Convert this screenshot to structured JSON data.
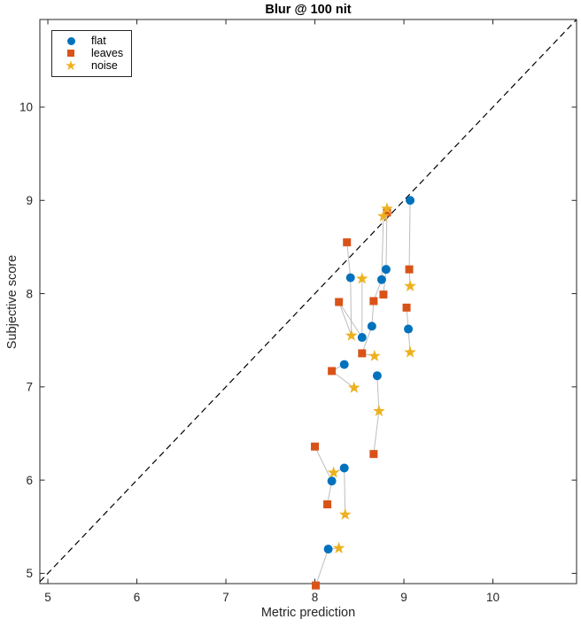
{
  "chart_data": {
    "type": "scatter",
    "title": "Blur @ 100 nit",
    "xlabel": "Metric prediction",
    "ylabel": "Subjective score",
    "xlim": [
      4.91,
      10.94
    ],
    "ylim": [
      4.89,
      10.94
    ],
    "x_ticks": [
      "5",
      "6",
      "7",
      "8",
      "9",
      "10"
    ],
    "x_tick_values": [
      5,
      6,
      7,
      8,
      9,
      10
    ],
    "y_ticks": [
      "5",
      "6",
      "7",
      "8",
      "9",
      "10"
    ],
    "y_tick_values": [
      5,
      6,
      7,
      8,
      9,
      10
    ],
    "grid": false,
    "legend_position": "top-left",
    "frame_color": "#262626",
    "identity_line": {
      "color": "#000000",
      "style": "dashed"
    },
    "connector_color": "#bebebe",
    "series": [
      {
        "name": "flat",
        "marker": "circle",
        "color": "#0072BD",
        "points": [
          [
            9.07,
            9.0
          ],
          [
            8.8,
            8.26
          ],
          [
            8.75,
            8.15
          ],
          [
            8.4,
            8.17
          ],
          [
            8.64,
            7.65
          ],
          [
            8.53,
            7.53
          ],
          [
            9.05,
            7.62
          ],
          [
            8.33,
            7.24
          ],
          [
            8.7,
            7.12
          ],
          [
            8.33,
            6.13
          ],
          [
            8.19,
            5.99
          ],
          [
            8.15,
            5.26
          ]
        ]
      },
      {
        "name": "leaves",
        "marker": "square",
        "color": "#D95319",
        "points": [
          [
            9.06,
            8.26
          ],
          [
            8.81,
            8.87
          ],
          [
            8.77,
            7.99
          ],
          [
            8.66,
            7.92
          ],
          [
            8.36,
            8.55
          ],
          [
            8.27,
            7.91
          ],
          [
            9.03,
            7.85
          ],
          [
            8.53,
            7.36
          ],
          [
            8.19,
            7.17
          ],
          [
            8.0,
            6.36
          ],
          [
            8.66,
            6.28
          ],
          [
            8.14,
            5.74
          ],
          [
            8.01,
            4.87
          ]
        ]
      },
      {
        "name": "noise",
        "marker": "star",
        "color": "#EDB120",
        "points": [
          [
            8.81,
            8.91
          ],
          [
            8.77,
            8.83
          ],
          [
            9.07,
            8.08
          ],
          [
            8.53,
            8.16
          ],
          [
            8.41,
            7.55
          ],
          [
            8.67,
            7.33
          ],
          [
            9.07,
            7.37
          ],
          [
            8.44,
            6.99
          ],
          [
            8.72,
            6.74
          ],
          [
            8.21,
            6.08
          ],
          [
            8.34,
            5.63
          ],
          [
            8.27,
            5.27
          ]
        ]
      }
    ],
    "connectors": [
      [
        [
          9.07,
          9.0
        ],
        [
          9.06,
          8.26
        ]
      ],
      [
        [
          9.06,
          8.26
        ],
        [
          9.07,
          8.08
        ]
      ],
      [
        [
          8.81,
          8.91
        ],
        [
          8.8,
          8.26
        ]
      ],
      [
        [
          8.77,
          8.83
        ],
        [
          8.75,
          8.15
        ]
      ],
      [
        [
          8.75,
          8.15
        ],
        [
          8.66,
          7.92
        ]
      ],
      [
        [
          8.8,
          8.26
        ],
        [
          8.77,
          7.99
        ]
      ],
      [
        [
          8.36,
          8.55
        ],
        [
          8.4,
          8.17
        ]
      ],
      [
        [
          8.4,
          8.17
        ],
        [
          8.41,
          7.55
        ]
      ],
      [
        [
          8.53,
          8.16
        ],
        [
          8.53,
          7.53
        ]
      ],
      [
        [
          8.27,
          7.91
        ],
        [
          8.53,
          7.53
        ]
      ],
      [
        [
          8.27,
          7.91
        ],
        [
          8.41,
          7.55
        ]
      ],
      [
        [
          8.66,
          7.92
        ],
        [
          8.64,
          7.65
        ]
      ],
      [
        [
          8.64,
          7.65
        ],
        [
          8.53,
          7.36
        ]
      ],
      [
        [
          8.53,
          7.36
        ],
        [
          8.67,
          7.33
        ]
      ],
      [
        [
          9.03,
          7.85
        ],
        [
          9.05,
          7.62
        ]
      ],
      [
        [
          9.05,
          7.62
        ],
        [
          9.07,
          7.37
        ]
      ],
      [
        [
          8.7,
          7.12
        ],
        [
          8.72,
          6.74
        ]
      ],
      [
        [
          8.72,
          6.74
        ],
        [
          8.66,
          6.28
        ]
      ],
      [
        [
          8.33,
          7.24
        ],
        [
          8.19,
          7.17
        ]
      ],
      [
        [
          8.19,
          7.17
        ],
        [
          8.44,
          6.99
        ]
      ],
      [
        [
          8.0,
          6.36
        ],
        [
          8.19,
          5.99
        ]
      ],
      [
        [
          8.33,
          6.13
        ],
        [
          8.34,
          5.63
        ]
      ],
      [
        [
          8.33,
          6.13
        ],
        [
          8.21,
          6.08
        ]
      ],
      [
        [
          8.19,
          5.99
        ],
        [
          8.14,
          5.74
        ]
      ],
      [
        [
          8.15,
          5.26
        ],
        [
          8.01,
          4.87
        ]
      ],
      [
        [
          8.27,
          5.27
        ],
        [
          8.15,
          5.26
        ]
      ]
    ]
  }
}
